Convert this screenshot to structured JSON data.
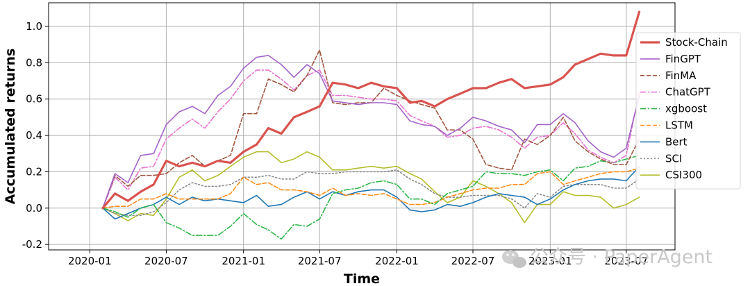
{
  "watermark": {
    "text": "公众号 · PaperAgent",
    "icon": "wechat-icon"
  },
  "chart_data": {
    "type": "line",
    "xlabel": "Time",
    "ylabel": "Accumulated returns",
    "xlim": [
      "2019-09-25",
      "2023-10-25"
    ],
    "ylim": [
      -0.23,
      1.13
    ],
    "x_ticks": [
      "2020-01",
      "2020-07",
      "2021-01",
      "2021-07",
      "2022-01",
      "2022-07",
      "2023-01",
      "2023-07"
    ],
    "y_ticks": [
      "-0.2",
      "0.0",
      "0.2",
      "0.4",
      "0.6",
      "0.8",
      "1.0"
    ],
    "grid": true,
    "legend_position": "right",
    "x": [
      "2020-02",
      "2020-03",
      "2020-04",
      "2020-05",
      "2020-06",
      "2020-07",
      "2020-08",
      "2020-09",
      "2020-10",
      "2020-11",
      "2020-12",
      "2021-01",
      "2021-02",
      "2021-03",
      "2021-04",
      "2021-05",
      "2021-06",
      "2021-07",
      "2021-08",
      "2021-09",
      "2021-10",
      "2021-11",
      "2021-12",
      "2022-01",
      "2022-02",
      "2022-03",
      "2022-04",
      "2022-05",
      "2022-06",
      "2022-07",
      "2022-08",
      "2022-09",
      "2022-10",
      "2022-11",
      "2022-12",
      "2023-01",
      "2023-02",
      "2023-03",
      "2023-04",
      "2023-05",
      "2023-06",
      "2023-07",
      "2023-08"
    ],
    "series": [
      {
        "name": "Stock-Chain",
        "color": "#d9534f",
        "dash": "solid",
        "width": 3.2,
        "values": [
          0.0,
          0.08,
          0.04,
          0.09,
          0.13,
          0.26,
          0.23,
          0.25,
          0.23,
          0.26,
          0.25,
          0.31,
          0.35,
          0.44,
          0.41,
          0.5,
          0.53,
          0.56,
          0.69,
          0.68,
          0.66,
          0.69,
          0.67,
          0.66,
          0.58,
          0.59,
          0.56,
          0.6,
          0.63,
          0.66,
          0.66,
          0.69,
          0.71,
          0.66,
          0.67,
          0.68,
          0.72,
          0.79,
          0.82,
          0.85,
          0.84,
          0.84,
          1.08
        ]
      },
      {
        "name": "FinGPT",
        "color": "#a463c9",
        "dash": "solid",
        "width": 1.6,
        "values": [
          0.0,
          0.19,
          0.14,
          0.29,
          0.3,
          0.46,
          0.53,
          0.56,
          0.52,
          0.62,
          0.67,
          0.77,
          0.83,
          0.84,
          0.79,
          0.72,
          0.79,
          0.74,
          0.59,
          0.58,
          0.57,
          0.58,
          0.58,
          0.57,
          0.48,
          0.46,
          0.45,
          0.4,
          0.44,
          0.5,
          0.48,
          0.45,
          0.43,
          0.36,
          0.46,
          0.46,
          0.52,
          0.47,
          0.37,
          0.31,
          0.28,
          0.33,
          0.62
        ]
      },
      {
        "name": "FinMA",
        "color": "#a0553f",
        "dash": "6,3",
        "width": 1.6,
        "values": [
          0.0,
          0.18,
          0.12,
          0.18,
          0.18,
          0.19,
          0.25,
          0.29,
          0.23,
          0.26,
          0.29,
          0.52,
          0.52,
          0.71,
          0.68,
          0.64,
          0.73,
          0.87,
          0.58,
          0.57,
          0.58,
          0.58,
          0.66,
          0.62,
          0.59,
          0.57,
          0.55,
          0.43,
          0.43,
          0.38,
          0.24,
          0.22,
          0.21,
          0.38,
          0.35,
          0.4,
          0.5,
          0.37,
          0.31,
          0.27,
          0.24,
          0.24,
          0.38
        ]
      },
      {
        "name": "ChatGPT",
        "color": "#e872d0",
        "dash": "8,3,2,3",
        "width": 1.6,
        "values": [
          0.0,
          0.17,
          0.1,
          0.22,
          0.23,
          0.38,
          0.44,
          0.49,
          0.44,
          0.53,
          0.6,
          0.7,
          0.76,
          0.76,
          0.71,
          0.65,
          0.73,
          0.76,
          0.62,
          0.62,
          0.61,
          0.6,
          0.6,
          0.59,
          0.51,
          0.48,
          0.45,
          0.39,
          0.4,
          0.44,
          0.45,
          0.43,
          0.39,
          0.33,
          0.39,
          0.4,
          0.47,
          0.41,
          0.32,
          0.28,
          0.25,
          0.29,
          0.64
        ]
      },
      {
        "name": "xgboost",
        "color": "#2db84a",
        "dash": "8,3,2,3",
        "width": 1.6,
        "values": [
          0.0,
          -0.02,
          -0.05,
          0.0,
          0.02,
          -0.08,
          -0.11,
          -0.15,
          -0.15,
          -0.15,
          -0.1,
          -0.03,
          -0.09,
          -0.12,
          -0.17,
          -0.09,
          -0.1,
          -0.06,
          0.08,
          0.1,
          0.11,
          0.14,
          0.15,
          0.13,
          0.05,
          0.05,
          0.02,
          0.08,
          0.1,
          0.12,
          0.2,
          0.19,
          0.19,
          0.18,
          0.2,
          0.21,
          0.15,
          0.22,
          0.23,
          0.26,
          0.25,
          0.27,
          0.29
        ]
      },
      {
        "name": "LSTM",
        "color": "#ff8c1a",
        "dash": "6,3",
        "width": 1.6,
        "values": [
          0.0,
          0.01,
          0.01,
          0.05,
          0.05,
          0.08,
          0.05,
          0.05,
          0.05,
          0.05,
          0.08,
          0.17,
          0.13,
          0.14,
          0.1,
          0.1,
          0.09,
          0.07,
          0.11,
          0.07,
          0.08,
          0.07,
          0.08,
          0.05,
          0.02,
          0.02,
          0.03,
          0.06,
          0.08,
          0.1,
          0.11,
          0.11,
          0.13,
          0.13,
          0.19,
          0.2,
          0.13,
          0.15,
          0.17,
          0.19,
          0.2,
          0.2,
          0.22
        ]
      },
      {
        "name": "Bert",
        "color": "#1f77b4",
        "dash": "solid",
        "width": 1.6,
        "values": [
          0.0,
          -0.06,
          -0.03,
          0.0,
          0.02,
          0.06,
          0.02,
          0.06,
          0.04,
          0.05,
          0.04,
          0.03,
          0.07,
          0.01,
          0.02,
          0.06,
          0.09,
          0.05,
          0.09,
          0.07,
          0.09,
          0.1,
          0.1,
          0.06,
          -0.01,
          -0.02,
          -0.01,
          0.02,
          0.01,
          0.03,
          0.06,
          0.08,
          0.07,
          0.06,
          0.02,
          0.05,
          0.1,
          0.13,
          0.15,
          0.16,
          0.16,
          0.15,
          0.23
        ]
      },
      {
        "name": "SCI",
        "color": "#8a8a8a",
        "dash": "2,3",
        "width": 1.6,
        "values": [
          0.0,
          -0.03,
          -0.04,
          -0.04,
          -0.02,
          0.03,
          0.1,
          0.14,
          0.12,
          0.12,
          0.13,
          0.17,
          0.17,
          0.18,
          0.16,
          0.16,
          0.2,
          0.19,
          0.19,
          0.2,
          0.2,
          0.2,
          0.2,
          0.21,
          0.16,
          0.13,
          0.08,
          0.06,
          0.06,
          0.07,
          0.07,
          0.07,
          0.05,
          0.0,
          0.08,
          0.06,
          0.12,
          0.13,
          0.13,
          0.13,
          0.11,
          0.11,
          0.16
        ]
      },
      {
        "name": "CSI300",
        "color": "#b5bd2b",
        "dash": "solid",
        "width": 1.6,
        "values": [
          0.0,
          -0.03,
          -0.07,
          -0.03,
          -0.04,
          0.05,
          0.17,
          0.21,
          0.15,
          0.18,
          0.23,
          0.28,
          0.31,
          0.31,
          0.25,
          0.27,
          0.31,
          0.28,
          0.21,
          0.21,
          0.22,
          0.23,
          0.22,
          0.23,
          0.19,
          0.16,
          0.09,
          0.03,
          0.06,
          0.15,
          0.12,
          0.08,
          0.03,
          -0.08,
          0.02,
          0.02,
          0.09,
          0.07,
          0.07,
          0.06,
          0.0,
          0.02,
          0.06
        ]
      }
    ]
  }
}
